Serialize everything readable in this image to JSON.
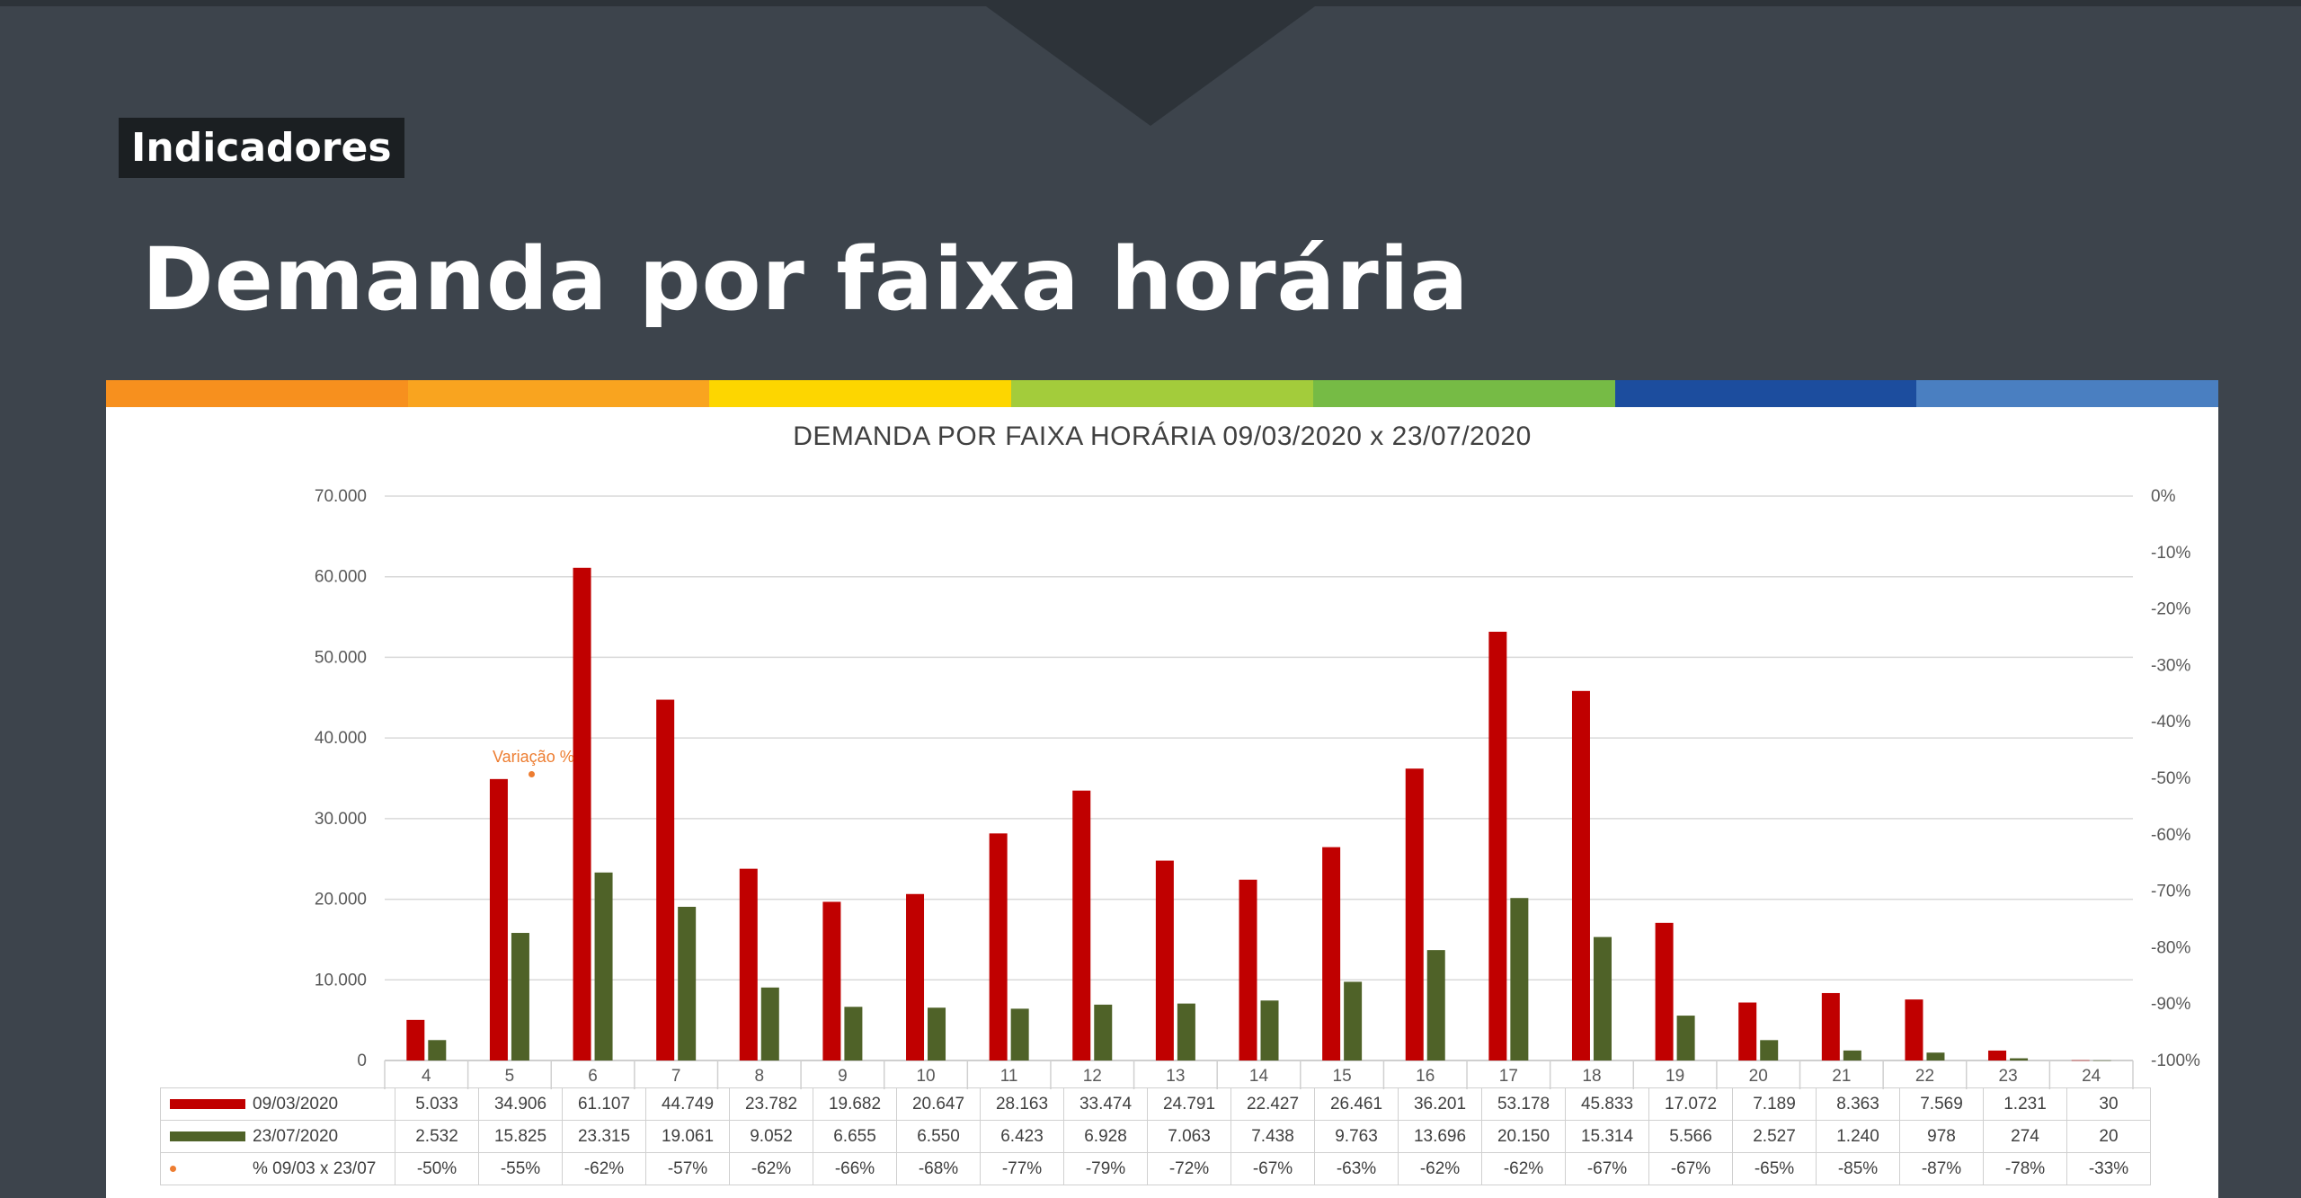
{
  "slide": {
    "tag": "Indicadores",
    "title": "Demanda por faixa horária",
    "color_bar": [
      "#f7901e",
      "#f9a41f",
      "#fdd600",
      "#a3cc3b",
      "#76bb45",
      "#1c4d9e",
      "#4a7fc1"
    ]
  },
  "chart_data": {
    "type": "bar",
    "title": "DEMANDA POR FAIXA HORÁRIA 09/03/2020 x 23/07/2020",
    "categories": [
      "4",
      "5",
      "6",
      "7",
      "8",
      "9",
      "10",
      "11",
      "12",
      "13",
      "14",
      "15",
      "16",
      "17",
      "18",
      "19",
      "20",
      "21",
      "22",
      "23",
      "24"
    ],
    "series": [
      {
        "name": "09/03/2020",
        "color": "#c00000",
        "values": [
          5033,
          34906,
          61107,
          44749,
          23782,
          19682,
          20647,
          28163,
          33474,
          24791,
          22427,
          26461,
          36201,
          53178,
          45833,
          17072,
          7189,
          8363,
          7569,
          1231,
          30
        ],
        "labels": [
          "5.033",
          "34.906",
          "61.107",
          "44.749",
          "23.782",
          "19.682",
          "20.647",
          "28.163",
          "33.474",
          "24.791",
          "22.427",
          "26.461",
          "36.201",
          "53.178",
          "45.833",
          "17.072",
          "7.189",
          "8.363",
          "7.569",
          "1.231",
          "30"
        ]
      },
      {
        "name": "23/07/2020",
        "color": "#4f6228",
        "values": [
          2532,
          15825,
          23315,
          19061,
          9052,
          6655,
          6550,
          6423,
          6928,
          7063,
          7438,
          9763,
          13696,
          20150,
          15314,
          5566,
          2527,
          1240,
          978,
          274,
          20
        ],
        "labels": [
          "2.532",
          "15.825",
          "23.315",
          "19.061",
          "9.052",
          "6.655",
          "6.550",
          "6.423",
          "6.928",
          "7.063",
          "7.438",
          "9.763",
          "13.696",
          "20.150",
          "15.314",
          "5.566",
          "2.527",
          "1.240",
          "978",
          "274",
          "20"
        ]
      },
      {
        "name": "% 09/03 x 23/07",
        "type": "line",
        "color": "#ed7d31",
        "axis": "secondary",
        "values": [
          -50,
          -55,
          -62,
          -57,
          -62,
          -66,
          -68,
          -77,
          -79,
          -72,
          -67,
          -63,
          -62,
          -62,
          -67,
          -67,
          -65,
          -85,
          -87,
          -78,
          -33
        ],
        "labels": [
          "-50%",
          "-55%",
          "-62%",
          "-57%",
          "-62%",
          "-66%",
          "-68%",
          "-77%",
          "-79%",
          "-72%",
          "-67%",
          "-63%",
          "-62%",
          "-62%",
          "-67%",
          "-67%",
          "-65%",
          "-85%",
          "-87%",
          "-78%",
          "-33%"
        ]
      }
    ],
    "ylim": [
      0,
      70000
    ],
    "yticks": [
      "0",
      "10.000",
      "20.000",
      "30.000",
      "40.000",
      "50.000",
      "60.000",
      "70.000"
    ],
    "y2lim": [
      -100,
      0
    ],
    "y2ticks": [
      "-100%",
      "-90%",
      "-80%",
      "-70%",
      "-60%",
      "-50%",
      "-40%",
      "-30%",
      "-20%",
      "-10%",
      "0%"
    ],
    "grid": true,
    "annotation": "Variação %",
    "data_table": true
  }
}
